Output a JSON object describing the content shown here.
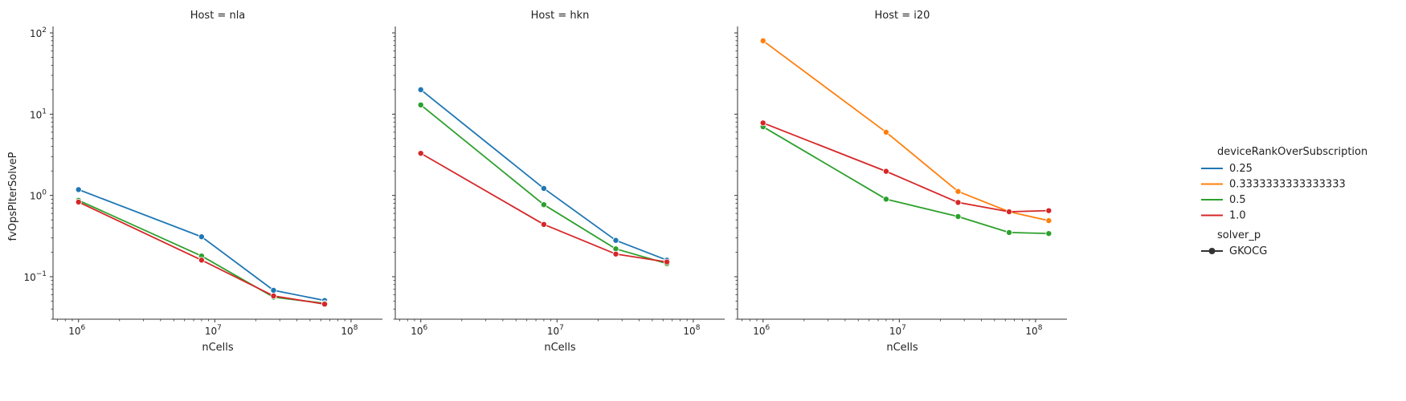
{
  "chart_data": {
    "type": "line",
    "xscale": "log",
    "yscale": "log",
    "xlabel": "nCells",
    "ylabel": "fvOpsPIterSolveP",
    "xlim": [
      650000,
      170000000
    ],
    "ylim": [
      0.03,
      120
    ],
    "x_ticks": [
      {
        "value": 1000000,
        "base": "10",
        "exp": "6"
      },
      {
        "value": 10000000,
        "base": "10",
        "exp": "7"
      },
      {
        "value": 100000000,
        "base": "10",
        "exp": "8"
      }
    ],
    "y_ticks": [
      {
        "value": 0.1,
        "base": "10",
        "exp": "−1"
      },
      {
        "value": 1,
        "base": "10",
        "exp": "0"
      },
      {
        "value": 10,
        "base": "10",
        "exp": "1"
      },
      {
        "value": 100,
        "base": "10",
        "exp": "2"
      }
    ],
    "legend": {
      "placement": "right",
      "hue_title": "deviceRankOverSubscription",
      "style_title": "solver_p",
      "style_entries": [
        {
          "label": "GKOCG",
          "marker": "circle"
        }
      ]
    },
    "hue_colors": {
      "0.25": "#1f77b4",
      "0.3333333333333333": "#ff7f0e",
      "0.5": "#2ca02c",
      "1.0": "#d62728"
    },
    "hue_order": [
      "0.25",
      "0.3333333333333333",
      "0.5",
      "1.0"
    ],
    "panels": [
      {
        "title": "Host = nla",
        "series": [
          {
            "name": "0.25",
            "x": [
              1000000,
              8000000,
              27000000,
              64000000
            ],
            "y": [
              1.18,
              0.31,
              0.068,
              0.051
            ]
          },
          {
            "name": "0.5",
            "x": [
              1000000,
              8000000,
              27000000,
              64000000
            ],
            "y": [
              0.87,
              0.18,
              0.056,
              0.047
            ]
          },
          {
            "name": "1.0",
            "x": [
              1000000,
              8000000,
              27000000,
              64000000
            ],
            "y": [
              0.83,
              0.16,
              0.058,
              0.046
            ]
          }
        ]
      },
      {
        "title": "Host = hkn",
        "series": [
          {
            "name": "0.25",
            "x": [
              1000000,
              8000000,
              27000000,
              64000000
            ],
            "y": [
              20.0,
              1.22,
              0.28,
              0.16
            ]
          },
          {
            "name": "0.5",
            "x": [
              1000000,
              8000000,
              27000000,
              64000000
            ],
            "y": [
              13.0,
              0.77,
              0.22,
              0.145
            ]
          },
          {
            "name": "1.0",
            "x": [
              1000000,
              8000000,
              27000000,
              64000000
            ],
            "y": [
              3.3,
              0.44,
              0.19,
              0.152
            ]
          }
        ]
      },
      {
        "title": "Host = i20",
        "series": [
          {
            "name": "0.3333333333333333",
            "x": [
              1000000,
              8000000,
              27000000,
              64000000,
              125000000
            ],
            "y": [
              80.0,
              6.0,
              1.12,
              0.63,
              0.49
            ]
          },
          {
            "name": "0.5",
            "x": [
              1000000,
              8000000,
              27000000,
              64000000,
              125000000
            ],
            "y": [
              7.0,
              0.9,
              0.55,
              0.35,
              0.34
            ]
          },
          {
            "name": "1.0",
            "x": [
              1000000,
              8000000,
              27000000,
              64000000,
              125000000
            ],
            "y": [
              7.8,
              1.98,
              0.82,
              0.63,
              0.65
            ]
          }
        ]
      }
    ]
  }
}
